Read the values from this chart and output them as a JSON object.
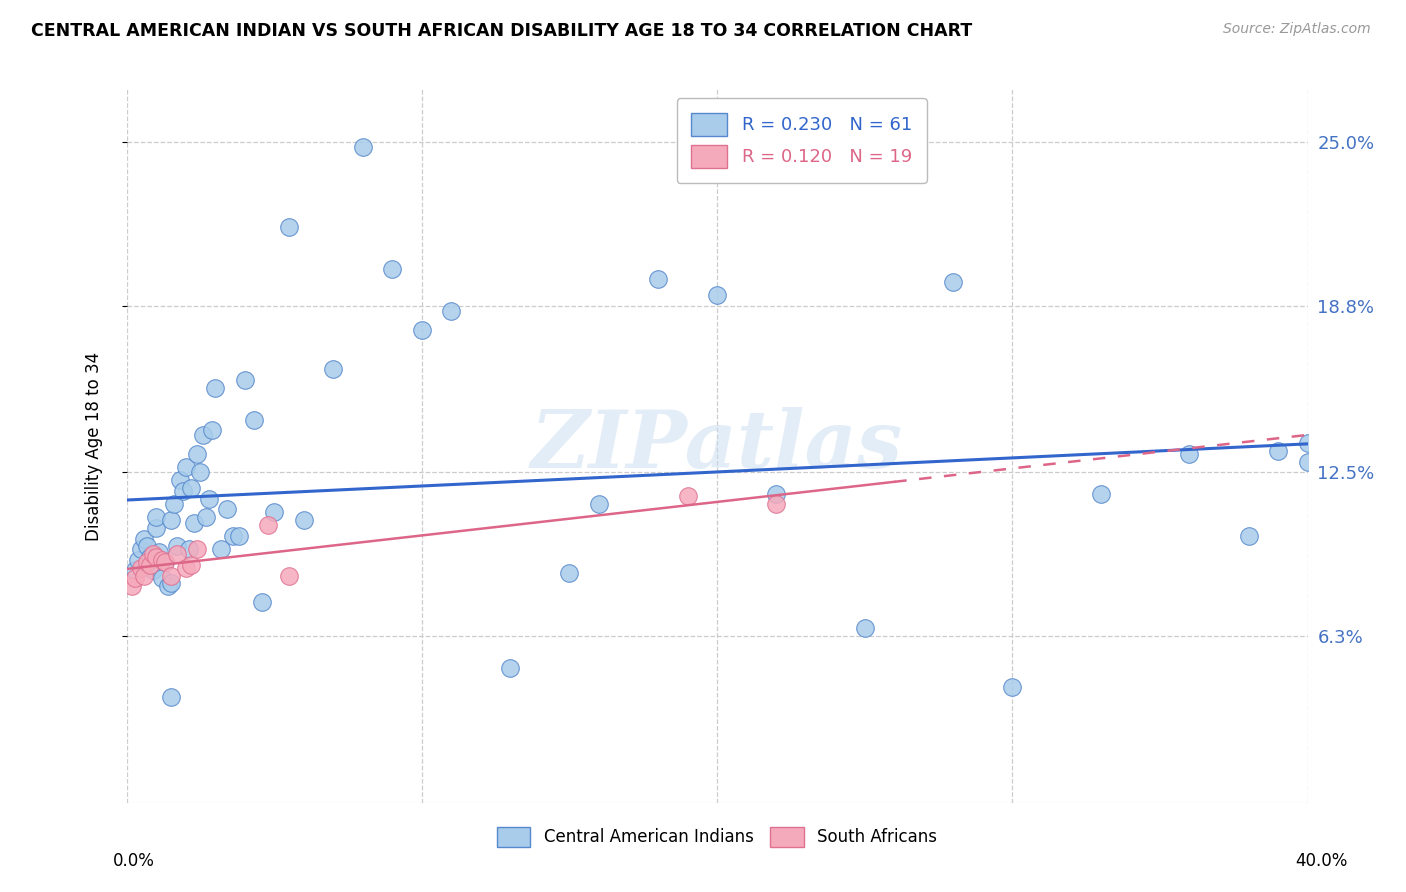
{
  "title": "CENTRAL AMERICAN INDIAN VS SOUTH AFRICAN DISABILITY AGE 18 TO 34 CORRELATION CHART",
  "source": "Source: ZipAtlas.com",
  "ylabel": "Disability Age 18 to 34",
  "ytick_labels": [
    "6.3%",
    "12.5%",
    "18.8%",
    "25.0%"
  ],
  "ytick_values": [
    0.063,
    0.125,
    0.188,
    0.25
  ],
  "xlim": [
    0.0,
    0.4
  ],
  "ylim": [
    0.0,
    0.27
  ],
  "legend_r1": "R = 0.230",
  "legend_n1": "N = 61",
  "legend_r2": "R = 0.120",
  "legend_n2": "N = 19",
  "blue_fill": "#A8CCEA",
  "pink_fill": "#F5AABB",
  "blue_edge": "#5588CC",
  "pink_edge": "#E07090",
  "trend_blue": "#3366CC",
  "trend_pink": "#DD6688",
  "watermark": "ZIPatlas",
  "blue_x": [
    0.003,
    0.004,
    0.005,
    0.006,
    0.007,
    0.008,
    0.009,
    0.01,
    0.01,
    0.011,
    0.012,
    0.013,
    0.014,
    0.015,
    0.015,
    0.016,
    0.017,
    0.018,
    0.019,
    0.02,
    0.021,
    0.022,
    0.023,
    0.024,
    0.025,
    0.026,
    0.027,
    0.028,
    0.029,
    0.03,
    0.032,
    0.034,
    0.036,
    0.038,
    0.04,
    0.043,
    0.046,
    0.05,
    0.055,
    0.06,
    0.07,
    0.08,
    0.09,
    0.1,
    0.11,
    0.13,
    0.15,
    0.16,
    0.18,
    0.2,
    0.22,
    0.25,
    0.28,
    0.3,
    0.33,
    0.36,
    0.38,
    0.39,
    0.4,
    0.4,
    0.015
  ],
  "blue_y": [
    0.088,
    0.092,
    0.096,
    0.1,
    0.097,
    0.093,
    0.088,
    0.104,
    0.108,
    0.095,
    0.085,
    0.091,
    0.082,
    0.083,
    0.107,
    0.113,
    0.097,
    0.122,
    0.118,
    0.127,
    0.096,
    0.119,
    0.106,
    0.132,
    0.125,
    0.139,
    0.108,
    0.115,
    0.141,
    0.157,
    0.096,
    0.111,
    0.101,
    0.101,
    0.16,
    0.145,
    0.076,
    0.11,
    0.218,
    0.107,
    0.164,
    0.248,
    0.202,
    0.179,
    0.186,
    0.051,
    0.087,
    0.113,
    0.198,
    0.192,
    0.117,
    0.066,
    0.197,
    0.044,
    0.117,
    0.132,
    0.101,
    0.133,
    0.129,
    0.136,
    0.04
  ],
  "pink_x": [
    0.002,
    0.003,
    0.005,
    0.006,
    0.007,
    0.008,
    0.009,
    0.01,
    0.012,
    0.013,
    0.015,
    0.017,
    0.02,
    0.022,
    0.024,
    0.048,
    0.055,
    0.19,
    0.22
  ],
  "pink_y": [
    0.082,
    0.085,
    0.089,
    0.086,
    0.091,
    0.09,
    0.094,
    0.093,
    0.092,
    0.091,
    0.086,
    0.094,
    0.089,
    0.09,
    0.096,
    0.105,
    0.086,
    0.116,
    0.113
  ]
}
